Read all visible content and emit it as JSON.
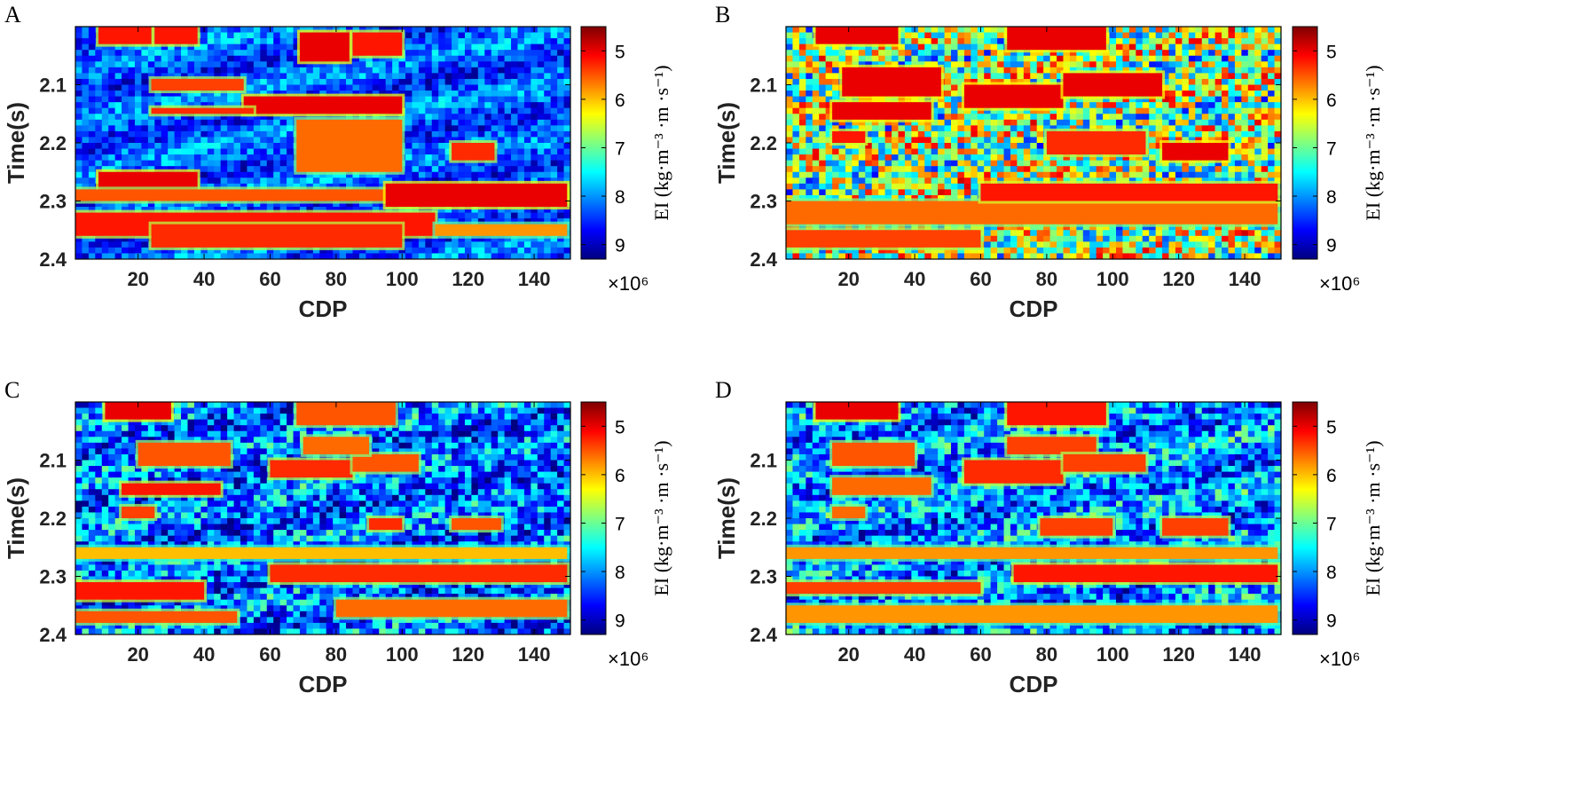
{
  "colors": {
    "low": "#7f0000",
    "mid": "#7fff7f",
    "high": "#00007f",
    "axis": "#000000"
  },
  "chart_data": [
    {
      "type": "heatmap",
      "panel_label": "A",
      "xlabel": "CDP",
      "ylabel": "Time(s)",
      "xlim": [
        1,
        151
      ],
      "ylim": [
        2.0,
        2.4
      ],
      "xticks": [
        "20",
        "40",
        "60",
        "80",
        "100",
        "120",
        "140"
      ],
      "yticks": [
        "2.1",
        "2.2",
        "2.3",
        "2.4"
      ],
      "colorbar": {
        "label": "EI (kg·m⁻³ ·m ·s⁻¹)",
        "multiplier": "×10⁶",
        "range": [
          4.5,
          9.3
        ],
        "ticks": [
          "5",
          "6",
          "7",
          "8",
          "9"
        ]
      },
      "background_value": 8.3,
      "features": [
        {
          "x": [
            8,
            24
          ],
          "t": [
            2.0,
            2.03
          ],
          "v": 5.2
        },
        {
          "x": [
            25,
            38
          ],
          "t": [
            2.0,
            2.03
          ],
          "v": 5.2
        },
        {
          "x": [
            69,
            84
          ],
          "t": [
            2.01,
            2.06
          ],
          "v": 5.0
        },
        {
          "x": [
            85,
            100
          ],
          "t": [
            2.01,
            2.05
          ],
          "v": 5.2
        },
        {
          "x": [
            24,
            52
          ],
          "t": [
            2.09,
            2.11
          ],
          "v": 5.4
        },
        {
          "x": [
            52,
            100
          ],
          "t": [
            2.12,
            2.15
          ],
          "v": 5.0
        },
        {
          "x": [
            24,
            55
          ],
          "t": [
            2.14,
            2.15
          ],
          "v": 5.3
        },
        {
          "x": [
            68,
            100
          ],
          "t": [
            2.16,
            2.25
          ],
          "v": 5.6
        },
        {
          "x": [
            115,
            128
          ],
          "t": [
            2.2,
            2.23
          ],
          "v": 5.3
        },
        {
          "x": [
            8,
            38
          ],
          "t": [
            2.25,
            2.29
          ],
          "v": 5.0
        },
        {
          "x": [
            0,
            150
          ],
          "t": [
            2.28,
            2.3
          ],
          "v": 5.5
        },
        {
          "x": [
            95,
            150
          ],
          "t": [
            2.27,
            2.31
          ],
          "v": 5.0
        },
        {
          "x": [
            0,
            110
          ],
          "t": [
            2.32,
            2.36
          ],
          "v": 5.2
        },
        {
          "x": [
            24,
            100
          ],
          "t": [
            2.34,
            2.38
          ],
          "v": 5.3
        },
        {
          "x": [
            110,
            150
          ],
          "t": [
            2.34,
            2.36
          ],
          "v": 5.8
        }
      ]
    },
    {
      "type": "heatmap",
      "panel_label": "B",
      "xlabel": "CDP",
      "ylabel": "Time(s)",
      "xlim": [
        1,
        151
      ],
      "ylim": [
        2.0,
        2.4
      ],
      "xticks": [
        "20",
        "40",
        "60",
        "80",
        "100",
        "120",
        "140"
      ],
      "yticks": [
        "2.1",
        "2.2",
        "2.3",
        "2.4"
      ],
      "colorbar": {
        "label": "EI (kg·m⁻³ ·m ·s⁻¹)",
        "multiplier": "×10⁶",
        "range": [
          4.5,
          9.3
        ],
        "ticks": [
          "5",
          "6",
          "7",
          "8",
          "9"
        ]
      },
      "background_value": 6.8,
      "features": [
        {
          "x": [
            10,
            35
          ],
          "t": [
            2.0,
            2.03
          ],
          "v": 5.0
        },
        {
          "x": [
            68,
            98
          ],
          "t": [
            2.0,
            2.04
          ],
          "v": 5.0
        },
        {
          "x": [
            18,
            48
          ],
          "t": [
            2.07,
            2.12
          ],
          "v": 5.0
        },
        {
          "x": [
            55,
            85
          ],
          "t": [
            2.1,
            2.14
          ],
          "v": 5.0
        },
        {
          "x": [
            85,
            115
          ],
          "t": [
            2.08,
            2.12
          ],
          "v": 5.0
        },
        {
          "x": [
            15,
            45
          ],
          "t": [
            2.13,
            2.16
          ],
          "v": 5.0
        },
        {
          "x": [
            15,
            25
          ],
          "t": [
            2.18,
            2.2
          ],
          "v": 5.2
        },
        {
          "x": [
            115,
            135
          ],
          "t": [
            2.2,
            2.23
          ],
          "v": 5.0
        },
        {
          "x": [
            80,
            110
          ],
          "t": [
            2.18,
            2.22
          ],
          "v": 5.3
        },
        {
          "x": [
            0,
            150
          ],
          "t": [
            2.3,
            2.34
          ],
          "v": 5.6
        },
        {
          "x": [
            60,
            150
          ],
          "t": [
            2.27,
            2.3
          ],
          "v": 5.2
        },
        {
          "x": [
            0,
            60
          ],
          "t": [
            2.35,
            2.38
          ],
          "v": 5.4
        }
      ]
    },
    {
      "type": "heatmap",
      "panel_label": "C",
      "xlabel": "CDP",
      "ylabel": "Time(s)",
      "xlim": [
        1,
        151
      ],
      "ylim": [
        2.0,
        2.4
      ],
      "xticks": [
        "20",
        "40",
        "60",
        "80",
        "100",
        "120",
        "140"
      ],
      "yticks": [
        "2.1",
        "2.2",
        "2.3",
        "2.4"
      ],
      "colorbar": {
        "label": "EI (kg·m⁻³ ·m ·s⁻¹)",
        "multiplier": "×10⁶",
        "range": [
          4.5,
          9.3
        ],
        "ticks": [
          "5",
          "6",
          "7",
          "8",
          "9"
        ]
      },
      "background_value": 8.2,
      "features": [
        {
          "x": [
            10,
            30
          ],
          "t": [
            2.0,
            2.03
          ],
          "v": 5.0
        },
        {
          "x": [
            68,
            98
          ],
          "t": [
            2.0,
            2.04
          ],
          "v": 5.5
        },
        {
          "x": [
            20,
            48
          ],
          "t": [
            2.07,
            2.11
          ],
          "v": 5.5
        },
        {
          "x": [
            60,
            85
          ],
          "t": [
            2.1,
            2.13
          ],
          "v": 5.3
        },
        {
          "x": [
            85,
            105
          ],
          "t": [
            2.09,
            2.12
          ],
          "v": 5.5
        },
        {
          "x": [
            70,
            90
          ],
          "t": [
            2.06,
            2.09
          ],
          "v": 5.6
        },
        {
          "x": [
            15,
            45
          ],
          "t": [
            2.14,
            2.16
          ],
          "v": 5.2
        },
        {
          "x": [
            15,
            25
          ],
          "t": [
            2.18,
            2.2
          ],
          "v": 5.4
        },
        {
          "x": [
            90,
            100
          ],
          "t": [
            2.2,
            2.22
          ],
          "v": 5.3
        },
        {
          "x": [
            115,
            130
          ],
          "t": [
            2.2,
            2.22
          ],
          "v": 5.5
        },
        {
          "x": [
            0,
            150
          ],
          "t": [
            2.25,
            2.27
          ],
          "v": 6.0
        },
        {
          "x": [
            0,
            40
          ],
          "t": [
            2.31,
            2.34
          ],
          "v": 5.2
        },
        {
          "x": [
            60,
            150
          ],
          "t": [
            2.28,
            2.31
          ],
          "v": 5.3
        },
        {
          "x": [
            0,
            50
          ],
          "t": [
            2.36,
            2.38
          ],
          "v": 5.5
        },
        {
          "x": [
            80,
            150
          ],
          "t": [
            2.34,
            2.37
          ],
          "v": 5.6
        }
      ]
    },
    {
      "type": "heatmap",
      "panel_label": "D",
      "xlabel": "CDP",
      "ylabel": "Time(s)",
      "xlim": [
        1,
        151
      ],
      "ylim": [
        2.0,
        2.4
      ],
      "xticks": [
        "20",
        "40",
        "60",
        "80",
        "100",
        "120",
        "140"
      ],
      "yticks": [
        "2.1",
        "2.2",
        "2.3",
        "2.4"
      ],
      "colorbar": {
        "label": "EI (kg·m⁻³ ·m ·s⁻¹)",
        "multiplier": "×10⁶",
        "range": [
          4.5,
          9.3
        ],
        "ticks": [
          "5",
          "6",
          "7",
          "8",
          "9"
        ]
      },
      "background_value": 8.0,
      "features": [
        {
          "x": [
            10,
            35
          ],
          "t": [
            2.0,
            2.03
          ],
          "v": 5.0
        },
        {
          "x": [
            68,
            98
          ],
          "t": [
            2.0,
            2.04
          ],
          "v": 5.2
        },
        {
          "x": [
            15,
            40
          ],
          "t": [
            2.07,
            2.11
          ],
          "v": 5.5
        },
        {
          "x": [
            55,
            85
          ],
          "t": [
            2.1,
            2.14
          ],
          "v": 5.3
        },
        {
          "x": [
            68,
            95
          ],
          "t": [
            2.06,
            2.09
          ],
          "v": 5.4
        },
        {
          "x": [
            85,
            110
          ],
          "t": [
            2.09,
            2.12
          ],
          "v": 5.4
        },
        {
          "x": [
            15,
            45
          ],
          "t": [
            2.13,
            2.16
          ],
          "v": 5.6
        },
        {
          "x": [
            15,
            25
          ],
          "t": [
            2.18,
            2.2
          ],
          "v": 5.6
        },
        {
          "x": [
            78,
            100
          ],
          "t": [
            2.2,
            2.23
          ],
          "v": 5.4
        },
        {
          "x": [
            115,
            135
          ],
          "t": [
            2.2,
            2.23
          ],
          "v": 5.4
        },
        {
          "x": [
            0,
            150
          ],
          "t": [
            2.25,
            2.27
          ],
          "v": 5.8
        },
        {
          "x": [
            0,
            60
          ],
          "t": [
            2.31,
            2.33
          ],
          "v": 5.4
        },
        {
          "x": [
            70,
            150
          ],
          "t": [
            2.28,
            2.31
          ],
          "v": 5.2
        },
        {
          "x": [
            0,
            150
          ],
          "t": [
            2.35,
            2.38
          ],
          "v": 5.8
        }
      ]
    }
  ]
}
